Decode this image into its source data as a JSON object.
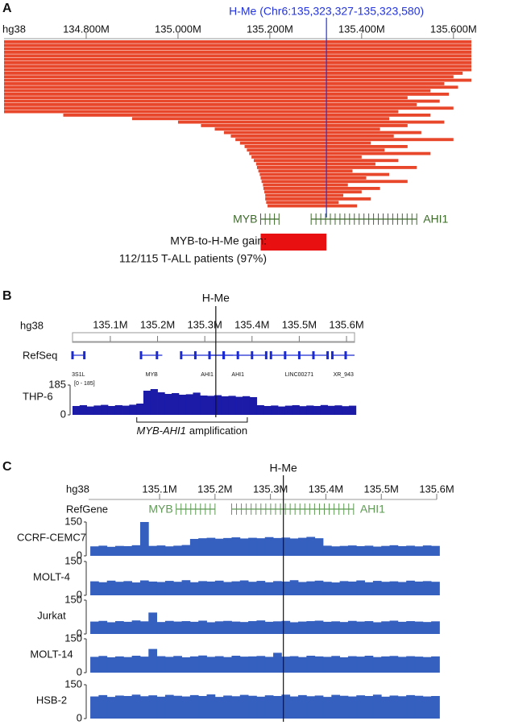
{
  "panels": [
    {
      "label": "A",
      "genome": "hg38",
      "xlim": [
        134.621,
        135.639
      ],
      "xticks": [
        {
          "value": 134.8,
          "label": "134.800M"
        },
        {
          "value": 135.0,
          "label": "135.000M"
        },
        {
          "value": 135.2,
          "label": "135.200M"
        },
        {
          "value": 135.4,
          "label": "135.400M"
        },
        {
          "value": 135.6,
          "label": "135.600M"
        }
      ],
      "marker": {
        "label": "H-Me (Chr6:135,323,327-135,323,580)",
        "value": 135.323327,
        "color": "#2233dd"
      },
      "color": "#e8472b",
      "segments": {
        "starts": [
          134.621,
          134.621,
          134.621,
          134.621,
          134.621,
          134.621,
          134.621,
          134.621,
          134.621,
          134.621,
          134.621,
          134.621,
          134.621,
          134.621,
          134.621,
          134.621,
          134.621,
          134.621,
          134.621,
          134.621,
          134.621,
          134.75,
          134.9,
          135.0,
          135.05,
          135.08,
          135.1,
          135.115,
          135.125,
          135.135,
          135.145,
          135.15,
          135.155,
          135.16,
          135.165,
          135.17,
          135.172,
          135.175,
          135.178,
          135.18,
          135.182,
          135.185,
          135.186,
          135.188,
          135.19,
          135.19,
          135.192,
          135.195
        ],
        "ends": [
          135.639,
          135.639,
          135.639,
          135.639,
          135.639,
          135.639,
          135.639,
          135.639,
          135.639,
          135.62,
          135.6,
          135.639,
          135.58,
          135.61,
          135.55,
          135.59,
          135.5,
          135.57,
          135.52,
          135.6,
          135.48,
          135.55,
          135.46,
          135.58,
          135.5,
          135.44,
          135.53,
          135.47,
          135.6,
          135.42,
          135.5,
          135.45,
          135.55,
          135.4,
          135.48,
          135.43,
          135.52,
          135.38,
          135.46,
          135.41,
          135.5,
          135.37,
          135.44,
          135.4,
          135.36,
          135.42,
          135.35,
          135.39
        ]
      },
      "genes": [
        {
          "label": "MYB",
          "start": 135.18,
          "end": 135.22
        },
        {
          "label": "AHI1",
          "start": 135.29,
          "end": 135.52
        }
      ],
      "gene_color": "#3d6b2a",
      "gain": {
        "lines": [
          "MYB-to-H-Me gain:",
          "112/115 T-ALL patients (97%)"
        ],
        "start": 135.18,
        "color": "#e81010"
      }
    },
    {
      "label": "B",
      "genome": "hg38",
      "xlim": [
        135.02,
        135.617
      ],
      "xticks": [
        {
          "value": 135.1,
          "label": "135.1M"
        },
        {
          "value": 135.2,
          "label": "135.2M"
        },
        {
          "value": 135.3,
          "label": "135.3M"
        },
        {
          "value": 135.4,
          "label": "135.4M"
        },
        {
          "value": 135.5,
          "label": "135.5M"
        },
        {
          "value": 135.6,
          "label": "135.6M"
        }
      ],
      "marker": {
        "label": "H-Me"
      },
      "annotation": "RefSeq",
      "genes": [
        {
          "label": "3S1L",
          "start": 135.02,
          "end": 135.045
        },
        {
          "label": "MYB",
          "start": 135.165,
          "end": 135.21
        },
        {
          "label": "AHI1",
          "start": 135.25,
          "end": 135.36
        },
        {
          "label": "AHI1",
          "start": 135.31,
          "end": 135.43
        },
        {
          "label": "LINC00271",
          "start": 135.44,
          "end": 135.56
        },
        {
          "label": "XR_943",
          "start": 135.57,
          "end": 135.617
        }
      ],
      "gene_color": "#1a2ad0",
      "x": [
        135.02,
        135.035,
        135.05,
        135.065,
        135.08,
        135.095,
        135.11,
        135.125,
        135.14,
        135.155,
        135.17,
        135.185,
        135.2,
        135.215,
        135.23,
        135.245,
        135.26,
        135.275,
        135.29,
        135.305,
        135.32,
        135.335,
        135.35,
        135.365,
        135.38,
        135.395,
        135.41,
        135.425,
        135.44,
        135.455,
        135.47,
        135.485,
        135.5,
        135.515,
        135.53,
        135.545,
        135.56,
        135.575,
        135.59,
        135.605
      ],
      "tracks": [
        {
          "name": "THP-6",
          "range_label": "[0 - 185]",
          "ylim": [
            0,
            185
          ],
          "yticks": [
            185,
            0
          ],
          "color": "#1b1ba8",
          "values": [
            55,
            60,
            52,
            58,
            62,
            55,
            60,
            57,
            63,
            70,
            150,
            160,
            140,
            130,
            135,
            125,
            128,
            138,
            120,
            118,
            122,
            115,
            118,
            112,
            116,
            110,
            60,
            55,
            58,
            52,
            57,
            60,
            54,
            58,
            55,
            61,
            56,
            59,
            54,
            57
          ]
        }
      ],
      "bracket": {
        "label_parts": [
          "MYB-AHI1",
          "amplification"
        ],
        "start": 135.156,
        "end": 135.39
      }
    },
    {
      "label": "C",
      "genome": "hg38",
      "xlim": [
        134.972,
        135.6
      ],
      "xticks": [
        {
          "value": 135.1,
          "label": "135.1M"
        },
        {
          "value": 135.2,
          "label": "135.2M"
        },
        {
          "value": 135.3,
          "label": "135.3M"
        },
        {
          "value": 135.4,
          "label": "135.4M"
        },
        {
          "value": 135.5,
          "label": "135.5M"
        },
        {
          "value": 135.6,
          "label": "135.6M"
        }
      ],
      "marker": {
        "label": "H-Me"
      },
      "annotation": "RefGene",
      "genes": [
        {
          "label": "MYB",
          "start": 135.13,
          "end": 135.2
        },
        {
          "label": "AHI1",
          "start": 135.23,
          "end": 135.45
        }
      ],
      "gene_color": "#5f9a55",
      "x": [
        134.975,
        134.99,
        135.005,
        135.02,
        135.035,
        135.05,
        135.065,
        135.08,
        135.095,
        135.11,
        135.125,
        135.14,
        135.155,
        135.17,
        135.185,
        135.2,
        135.215,
        135.23,
        135.245,
        135.26,
        135.275,
        135.29,
        135.305,
        135.32,
        135.335,
        135.35,
        135.365,
        135.38,
        135.395,
        135.41,
        135.425,
        135.44,
        135.455,
        135.47,
        135.485,
        135.5,
        135.515,
        135.53,
        135.545,
        135.56,
        135.575,
        135.59
      ],
      "tracks": [
        {
          "name": "CCRF-CEMC7",
          "ylim": [
            0,
            150
          ],
          "yticks": [
            150,
            0
          ],
          "color": "#3560c0",
          "values": [
            42,
            45,
            40,
            44,
            43,
            47,
            150,
            44,
            46,
            42,
            45,
            48,
            75,
            78,
            80,
            76,
            79,
            82,
            77,
            80,
            78,
            83,
            79,
            81,
            77,
            80,
            84,
            78,
            45,
            42,
            44,
            46,
            43,
            45,
            41,
            44,
            47,
            43,
            45,
            42,
            46,
            44
          ]
        },
        {
          "name": "MOLT-4",
          "ylim": [
            0,
            150
          ],
          "yticks": [
            150,
            0
          ],
          "color": "#3560c0",
          "values": [
            62,
            58,
            65,
            60,
            63,
            57,
            66,
            61,
            59,
            64,
            60,
            67,
            58,
            63,
            61,
            65,
            59,
            62,
            66,
            60,
            64,
            58,
            63,
            61,
            67,
            59,
            62,
            65,
            60,
            57,
            63,
            61,
            66,
            58,
            64,
            60,
            62,
            59,
            65,
            61,
            63,
            60
          ]
        },
        {
          "name": "Jurkat",
          "ylim": [
            0,
            150
          ],
          "yticks": [
            150,
            0
          ],
          "color": "#3560c0",
          "values": [
            55,
            58,
            52,
            57,
            54,
            60,
            56,
            95,
            53,
            58,
            55,
            57,
            54,
            59,
            52,
            56,
            58,
            55,
            53,
            57,
            60,
            54,
            56,
            58,
            52,
            55,
            57,
            59,
            54,
            56,
            53,
            58,
            55,
            57,
            52,
            56,
            59,
            54,
            57,
            55,
            53,
            56
          ]
        },
        {
          "name": "MOLT-14",
          "ylim": [
            0,
            150
          ],
          "yticks": [
            150,
            0
          ],
          "color": "#3560c0",
          "values": [
            70,
            74,
            68,
            72,
            69,
            75,
            71,
            105,
            73,
            70,
            74,
            68,
            72,
            76,
            70,
            73,
            69,
            75,
            71,
            72,
            74,
            70,
            88,
            71,
            73,
            69,
            75,
            72,
            70,
            74,
            68,
            73,
            71,
            75,
            69,
            72,
            74,
            70,
            73,
            71,
            69,
            72
          ]
        },
        {
          "name": "HSB-2",
          "ylim": [
            0,
            150
          ],
          "yticks": [
            150,
            0
          ],
          "color": "#3560c0",
          "values": [
            98,
            104,
            96,
            102,
            100,
            106,
            99,
            103,
            97,
            105,
            101,
            98,
            104,
            100,
            107,
            96,
            102,
            99,
            105,
            101,
            97,
            103,
            100,
            106,
            98,
            104,
            99,
            102,
            96,
            105,
            101,
            98,
            103,
            100,
            106,
            97,
            102,
            99,
            104,
            101,
            98,
            100
          ]
        }
      ]
    }
  ]
}
